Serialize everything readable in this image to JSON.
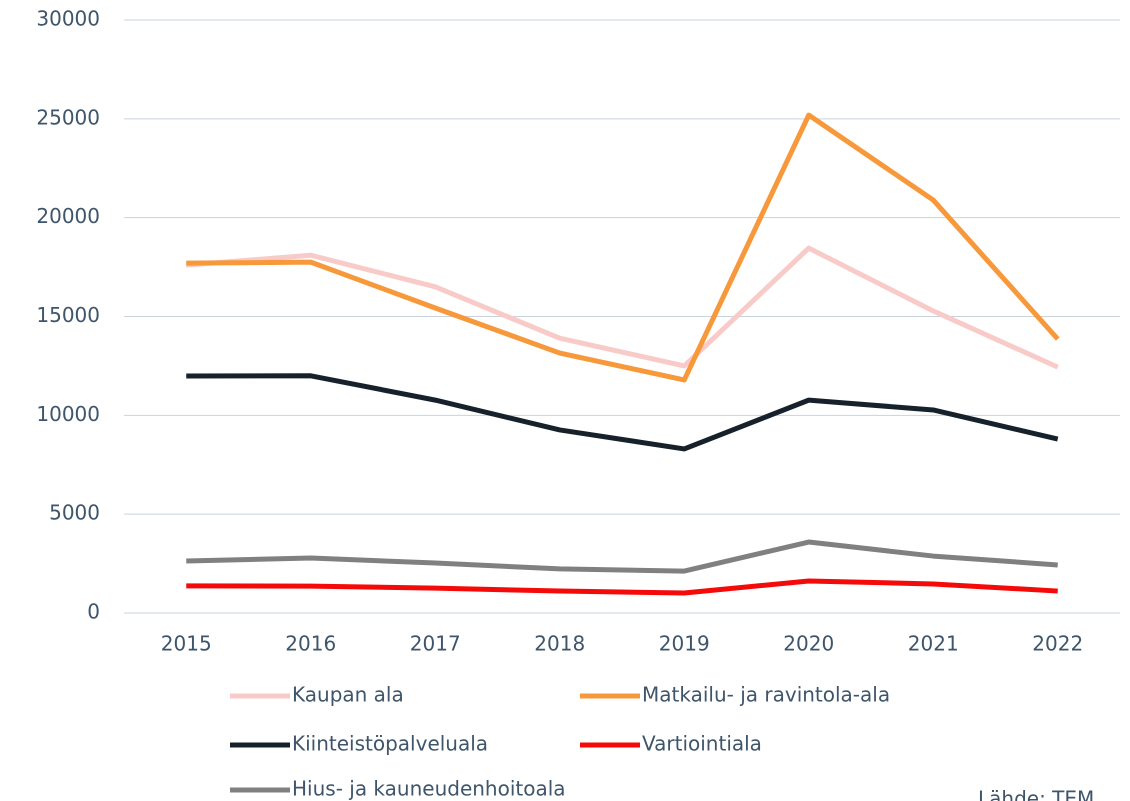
{
  "chart_data": {
    "type": "line",
    "categories": [
      "2015",
      "2016",
      "2017",
      "2018",
      "2019",
      "2020",
      "2021",
      "2022"
    ],
    "series": [
      {
        "name": "Kaupan ala",
        "color": "#f8cbc8",
        "values": [
          17600,
          18100,
          16500,
          13900,
          12500,
          18460,
          15280,
          12440
        ]
      },
      {
        "name": "Matkailu- ja ravintola-ala",
        "color": "#f7983a",
        "values": [
          17700,
          17750,
          15430,
          13150,
          11790,
          25190,
          20890,
          13860
        ]
      },
      {
        "name": "Kiinteistöpalveluala",
        "color": "#17212b",
        "values": [
          11990,
          12000,
          10770,
          9260,
          8300,
          10770,
          10270,
          8800
        ]
      },
      {
        "name": "Vartiointiala",
        "color": "#f50a0a",
        "values": [
          1370,
          1360,
          1260,
          1110,
          1010,
          1620,
          1470,
          1110
        ]
      },
      {
        "name": "Hius- ja kauneudenhoitoala",
        "color": "#808080",
        "values": [
          2630,
          2780,
          2530,
          2230,
          2120,
          3590,
          2880,
          2430
        ]
      }
    ],
    "ylim": [
      0,
      30000
    ],
    "yticks": [
      0,
      5000,
      10000,
      15000,
      20000,
      25000,
      30000
    ],
    "grid": true,
    "source": "Lähde: TEM"
  }
}
